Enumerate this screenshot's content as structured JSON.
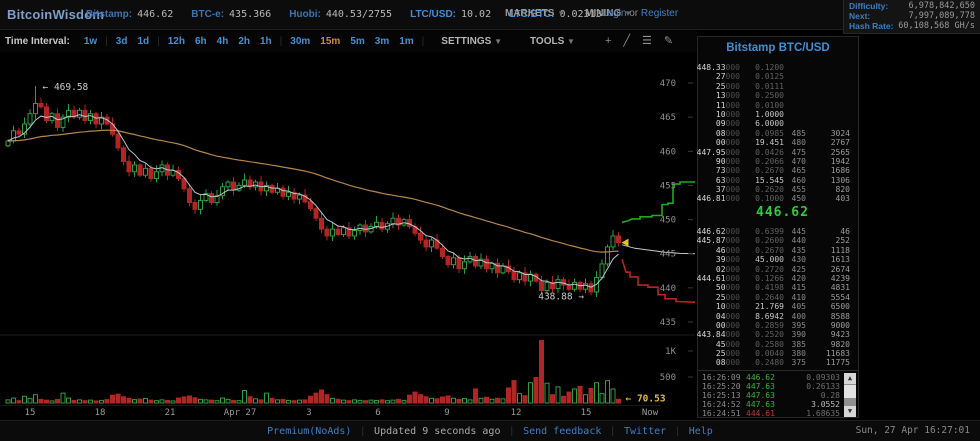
{
  "header": {
    "logo": "BitcoinWisdom",
    "tickers": [
      {
        "label": "Bitstamp:",
        "value": "446.62",
        "bright": false
      },
      {
        "label": "BTC-e:",
        "value": "435.366",
        "bright": false
      },
      {
        "label": "Huobi:",
        "value": "440.53/2755",
        "bright": false
      },
      {
        "label": "LTC/USD:",
        "value": "10.02",
        "bright": true
      },
      {
        "label": "LTC/BTC:",
        "value": "0.02313",
        "bright": true
      }
    ],
    "menus": [
      {
        "label": "MARKETS"
      },
      {
        "label": "MINING"
      }
    ],
    "login": {
      "a": "Login",
      "or": "or",
      "b": "Register"
    },
    "stats": [
      {
        "label": "Difficulty:",
        "value": "6,978,842,650"
      },
      {
        "label": "Next:",
        "value": "7,997,089,778"
      },
      {
        "label": "Hash Rate:",
        "value": "60,108,568 GH/s"
      }
    ]
  },
  "toolbar": {
    "time_interval_label": "Time Interval:",
    "groups": [
      [
        "1w"
      ],
      [
        "3d",
        "1d"
      ],
      [
        "12h",
        "6h",
        "4h",
        "2h",
        "1h"
      ],
      [
        "30m",
        "15m",
        "5m",
        "3m",
        "1m"
      ]
    ],
    "active": "15m",
    "settings": "SETTINGS",
    "tools": "TOOLS",
    "caret": "▼",
    "icons": [
      {
        "name": "add-chart-icon",
        "glyph": "+"
      },
      {
        "name": "trendline-tool-icon",
        "glyph": "╱"
      },
      {
        "name": "indicators-icon",
        "glyph": "☰"
      },
      {
        "name": "draw-tool-icon",
        "glyph": "✎"
      }
    ]
  },
  "orderbook": {
    "title": "Bitstamp BTC/USD",
    "last_price": "446.62",
    "asks": [
      {
        "p": "448.33",
        "z": "000",
        "amt": "0.1200",
        "bright": false,
        "lvl": "",
        "cum": ""
      },
      {
        "p": "27",
        "z": "000",
        "amt": "0.0125",
        "bright": false,
        "lvl": "",
        "cum": ""
      },
      {
        "p": "25",
        "z": "000",
        "amt": "0.0111",
        "bright": false,
        "lvl": "",
        "cum": ""
      },
      {
        "p": "13",
        "z": "000",
        "amt": "0.2500",
        "bright": false,
        "lvl": "",
        "cum": ""
      },
      {
        "p": "11",
        "z": "000",
        "amt": "0.0100",
        "bright": false,
        "lvl": "",
        "cum": ""
      },
      {
        "p": "10",
        "z": "000",
        "amt": "1.0000",
        "bright": true,
        "lvl": "",
        "cum": ""
      },
      {
        "p": "09",
        "z": "000",
        "amt": "6.0000",
        "bright": true,
        "lvl": "",
        "cum": ""
      },
      {
        "p": "08",
        "z": "000",
        "amt": "0.0985",
        "bright": false,
        "lvl": "485",
        "cum": "3024"
      },
      {
        "p": "00",
        "z": "000",
        "amt": "19.451",
        "bright": true,
        "lvl": "480",
        "cum": "2767"
      },
      {
        "p": "447.95",
        "z": "000",
        "amt": "0.0426",
        "bright": false,
        "lvl": "475",
        "cum": "2565"
      },
      {
        "p": "90",
        "z": "000",
        "amt": "0.2066",
        "bright": false,
        "lvl": "470",
        "cum": "1942"
      },
      {
        "p": "73",
        "z": "000",
        "amt": "0.2670",
        "bright": false,
        "lvl": "465",
        "cum": "1686"
      },
      {
        "p": "63",
        "z": "000",
        "amt": "15.545",
        "bright": true,
        "lvl": "460",
        "cum": "1306"
      },
      {
        "p": "37",
        "z": "000",
        "amt": "0.2620",
        "bright": false,
        "lvl": "455",
        "cum": "820"
      },
      {
        "p": "446.81",
        "z": "000",
        "amt": "0.1000",
        "bright": false,
        "lvl": "450",
        "cum": "403"
      }
    ],
    "bids": [
      {
        "p": "446.62",
        "z": "000",
        "amt": "0.6399",
        "bright": false,
        "lvl": "445",
        "cum": "46"
      },
      {
        "p": "445.87",
        "z": "000",
        "amt": "0.2600",
        "bright": false,
        "lvl": "440",
        "cum": "252"
      },
      {
        "p": "46",
        "z": "000",
        "amt": "0.2670",
        "bright": false,
        "lvl": "435",
        "cum": "1118"
      },
      {
        "p": "39",
        "z": "000",
        "amt": "45.000",
        "bright": true,
        "lvl": "430",
        "cum": "1613"
      },
      {
        "p": "02",
        "z": "000",
        "amt": "0.2720",
        "bright": false,
        "lvl": "425",
        "cum": "2674"
      },
      {
        "p": "444.61",
        "z": "000",
        "amt": "0.1266",
        "bright": false,
        "lvl": "420",
        "cum": "4239"
      },
      {
        "p": "50",
        "z": "000",
        "amt": "0.4198",
        "bright": false,
        "lvl": "415",
        "cum": "4831"
      },
      {
        "p": "25",
        "z": "000",
        "amt": "0.2640",
        "bright": false,
        "lvl": "410",
        "cum": "5554"
      },
      {
        "p": "10",
        "z": "000",
        "amt": "21.769",
        "bright": true,
        "lvl": "405",
        "cum": "6500"
      },
      {
        "p": "04",
        "z": "000",
        "amt": "8.6942",
        "bright": true,
        "lvl": "400",
        "cum": "8588"
      },
      {
        "p": "00",
        "z": "000",
        "amt": "0.2859",
        "bright": false,
        "lvl": "395",
        "cum": "9000"
      },
      {
        "p": "443.84",
        "z": "000",
        "amt": "0.2520",
        "bright": false,
        "lvl": "390",
        "cum": "9423"
      },
      {
        "p": "45",
        "z": "000",
        "amt": "0.2580",
        "bright": false,
        "lvl": "385",
        "cum": "9820"
      },
      {
        "p": "25",
        "z": "000",
        "amt": "0.0040",
        "bright": false,
        "lvl": "380",
        "cum": "11683"
      },
      {
        "p": "08",
        "z": "000",
        "amt": "0.2480",
        "bright": false,
        "lvl": "375",
        "cum": "11775"
      }
    ],
    "trades": [
      {
        "time": "16:26:09",
        "price": "446.62",
        "amt": "0.09303",
        "dir": "up",
        "bright": false
      },
      {
        "time": "16:25:20",
        "price": "447.63",
        "amt": "0.26133",
        "dir": "up",
        "bright": false
      },
      {
        "time": "16:25:13",
        "price": "447.63",
        "amt": "0.28",
        "dir": "up",
        "bright": false
      },
      {
        "time": "16:24:52",
        "price": "447.63",
        "amt": "3.0552",
        "dir": "up",
        "bright": true
      },
      {
        "time": "16:24:51",
        "price": "444.61",
        "amt": "1.68635",
        "dir": "down",
        "bright": false
      }
    ]
  },
  "chart_data": {
    "type": "candlestick",
    "interval": "15m",
    "ylim": [
      434.5,
      471
    ],
    "open_first": 460.8,
    "closes": [
      461.5,
      463.0,
      462.5,
      464.0,
      465.5,
      467.0,
      466.5,
      464.5,
      465.5,
      463.5,
      465.0,
      466.0,
      465.0,
      466.0,
      464.5,
      465.5,
      464.0,
      465.0,
      464.0,
      462.5,
      460.5,
      458.5,
      457.0,
      458.0,
      456.5,
      457.5,
      456.0,
      457.0,
      458.0,
      456.5,
      457.2,
      456.0,
      454.5,
      452.5,
      451.5,
      452.8,
      453.8,
      452.5,
      453.5,
      454.8,
      455.5,
      454.3,
      455.0,
      455.8,
      454.8,
      455.5,
      454.2,
      455.0,
      454.0,
      454.6,
      453.4,
      454.0,
      453.0,
      453.6,
      452.6,
      451.6,
      450.2,
      448.6,
      447.6,
      448.6,
      447.8,
      448.8,
      447.6,
      448.4,
      449.2,
      448.2,
      449.0,
      449.6,
      448.6,
      449.4,
      450.2,
      449.2,
      450.0,
      449.0,
      448.0,
      447.0,
      446.0,
      447.0,
      445.8,
      444.6,
      443.4,
      444.4,
      442.8,
      443.8,
      444.6,
      443.2,
      444.2,
      442.8,
      443.6,
      442.2,
      443.2,
      442.4,
      441.2,
      442.2,
      441.0,
      442.0,
      441.0,
      439.6,
      440.8,
      439.9,
      441.2,
      440.4,
      439.8,
      440.8,
      439.8,
      440.6,
      439.4,
      441.5,
      443.5,
      446.0,
      447.6,
      446.62
    ],
    "volumes": [
      60,
      95,
      45,
      130,
      85,
      160,
      70,
      55,
      40,
      70,
      190,
      95,
      50,
      60,
      45,
      55,
      40,
      50,
      65,
      150,
      170,
      120,
      90,
      65,
      75,
      85,
      55,
      45,
      60,
      50,
      40,
      95,
      115,
      135,
      100,
      70,
      60,
      55,
      45,
      95,
      70,
      50,
      45,
      240,
      120,
      80,
      60,
      190,
      90,
      60,
      70,
      50,
      45,
      55,
      60,
      130,
      190,
      250,
      160,
      90,
      70,
      55,
      45,
      60,
      50,
      45,
      55,
      50,
      60,
      45,
      55,
      70,
      50,
      150,
      210,
      160,
      120,
      90,
      80,
      115,
      135,
      90,
      70,
      85,
      60,
      270,
      90,
      110,
      70,
      90,
      80,
      290,
      430,
      180,
      140,
      390,
      490,
      1200,
      380,
      160,
      310,
      130,
      210,
      270,
      320,
      160,
      280,
      390,
      180,
      430,
      270,
      70.53
    ],
    "price_ticks": [
      470,
      465,
      460,
      455,
      450,
      445,
      440,
      435
    ],
    "vol_ticks": [
      {
        "t": "1K",
        "v": 1000
      },
      {
        "t": "500",
        "v": 500
      }
    ],
    "x_labels": [
      {
        "t": "15",
        "x": 30
      },
      {
        "t": "18",
        "x": 100
      },
      {
        "t": "21",
        "x": 170
      },
      {
        "t": "Apr 27",
        "x": 240
      },
      {
        "t": "3",
        "x": 309
      },
      {
        "t": "6",
        "x": 378
      },
      {
        "t": "9",
        "x": 447
      },
      {
        "t": "12",
        "x": 516
      },
      {
        "t": "15",
        "x": 586
      },
      {
        "t": "Now",
        "x": 650
      }
    ],
    "annotations": {
      "high": {
        "label": "← 469.58",
        "index": 5,
        "price": 469.58
      },
      "low": {
        "label": "438.88 →",
        "index": 106,
        "price": 438.88
      },
      "last_vol": {
        "label": "← 70.53",
        "value": 70.53
      }
    },
    "last_price": 446.62,
    "depth": {
      "asks_line": [
        [
          622,
          449.6
        ],
        [
          628,
          449.8
        ],
        [
          632,
          450.1
        ],
        [
          640,
          450.1
        ],
        [
          640,
          450.4
        ],
        [
          652,
          450.4
        ],
        [
          652,
          450.6
        ],
        [
          662,
          450.6
        ],
        [
          662,
          452.2
        ],
        [
          668,
          452.2
        ],
        [
          668,
          452.4
        ],
        [
          673,
          452.4
        ],
        [
          673,
          455.2
        ],
        [
          680,
          455.2
        ],
        [
          680,
          455.5
        ],
        [
          695,
          455.5
        ]
      ],
      "bids_line": [
        [
          622,
          444.2
        ],
        [
          626,
          442.3
        ],
        [
          630,
          442.3
        ],
        [
          630,
          441.6
        ],
        [
          638,
          441.6
        ],
        [
          638,
          440.4
        ],
        [
          648,
          440.4
        ],
        [
          648,
          440.1
        ],
        [
          658,
          440.1
        ],
        [
          658,
          439.0
        ],
        [
          665,
          439.0
        ],
        [
          665,
          438.4
        ],
        [
          676,
          438.4
        ],
        [
          676,
          438.0
        ],
        [
          695,
          437.9
        ]
      ],
      "mid_line": [
        [
          622,
          446.3
        ],
        [
          635,
          445.8
        ],
        [
          650,
          445.5
        ],
        [
          665,
          445.2
        ],
        [
          680,
          445.05
        ],
        [
          695,
          445.0
        ]
      ]
    },
    "colors": {
      "up": "#2f9e41",
      "down": "#b32424",
      "ma_fast": "#b9c6d2",
      "ma_slow": "#b5854b",
      "depth_ask": "#1faa1f",
      "depth_bid": "#bb2222",
      "depth_mid": "#c8c8c8",
      "marker": "#e0c030",
      "vol_label": "#d9bc3a",
      "axis_text": "#909090"
    }
  },
  "footer": {
    "items": [
      {
        "label": "Premium(NoAds)",
        "link": true
      },
      {
        "label": "Updated 9 seconds ago",
        "link": false
      },
      {
        "label": "Send feedback",
        "link": true
      },
      {
        "label": "Twitter",
        "link": true
      },
      {
        "label": "Help",
        "link": true
      }
    ],
    "clock": "Sun, 27 Apr 16:27:01"
  }
}
